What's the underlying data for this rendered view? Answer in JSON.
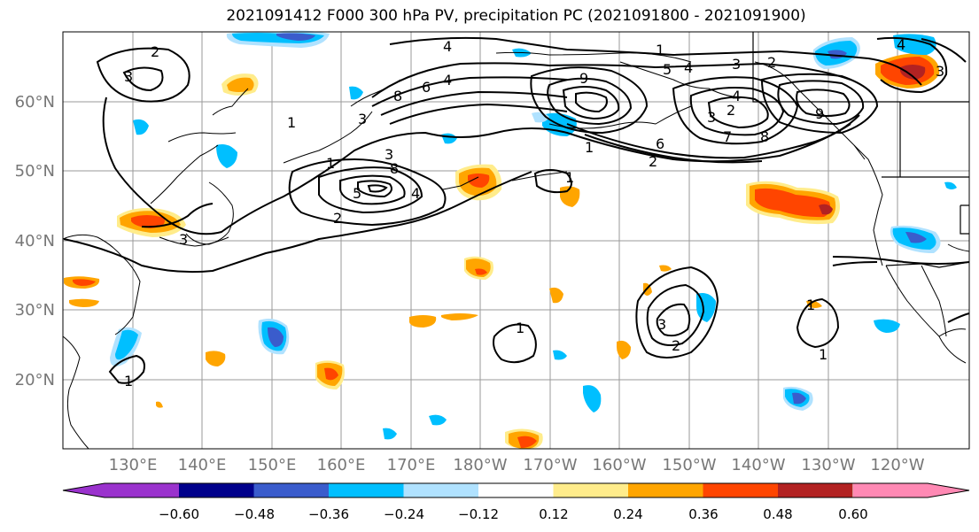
{
  "title": "2021091412 F000 300 hPa PV, precipitation PC (2021091800 - 2021091900)",
  "lat_labels": [
    "60°N",
    "50°N",
    "40°N",
    "30°N",
    "20°N"
  ],
  "lon_labels": [
    "130°E",
    "140°E",
    "150°E",
    "160°E",
    "170°E",
    "180°W",
    "170°W",
    "160°W",
    "150°W",
    "140°W",
    "130°W",
    "120°W"
  ],
  "colorbar": {
    "colors": [
      "#9a32cd",
      "#00008b",
      "#3a5ccc",
      "#00bfff",
      "#b0e2ff",
      "#ffffff",
      "#ffec8b",
      "#ffa500",
      "#ff4500",
      "#b22222",
      "#ff89b4"
    ],
    "labels": [
      "−0.60",
      "−0.48",
      "−0.36",
      "−0.24",
      "−0.12",
      "0.12",
      "0.24",
      "0.36",
      "0.48",
      "0.60"
    ]
  },
  "contour_labels": [
    "1",
    "2",
    "3",
    "4",
    "5",
    "6",
    "7",
    "8",
    "9"
  ]
}
